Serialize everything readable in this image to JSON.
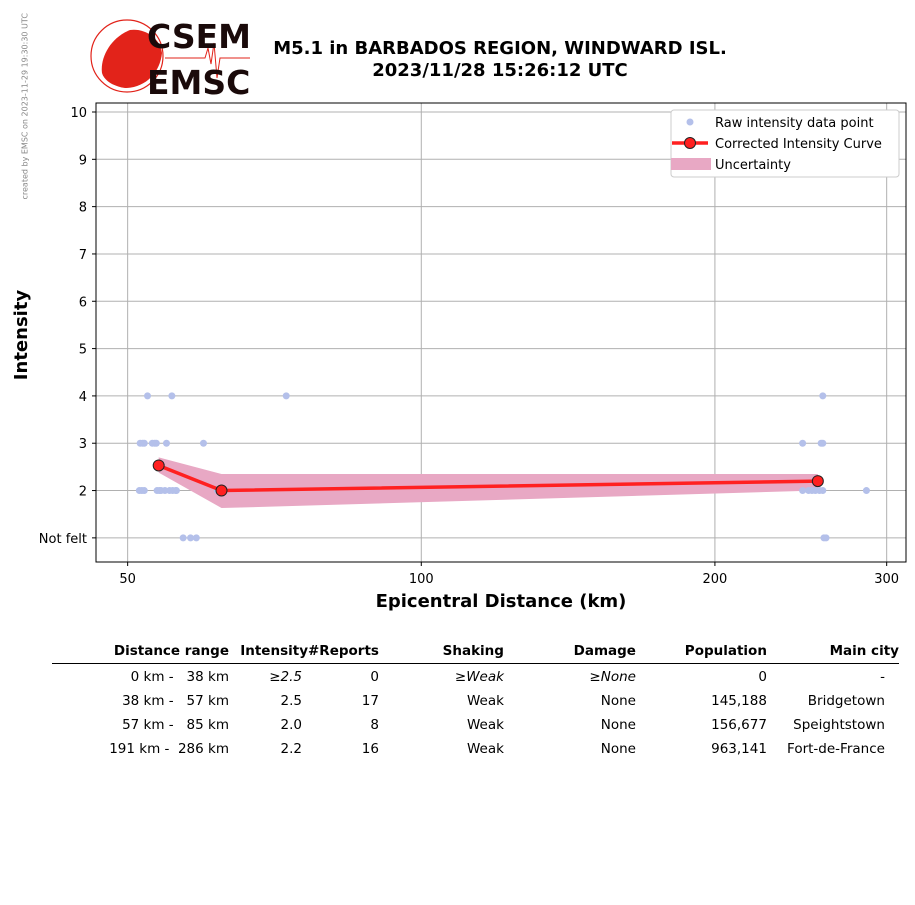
{
  "credit": "created by EMSC on 2023-11-29 19:30:30 UTC",
  "logo": {
    "top": "CSEM",
    "bottom": "EMSC"
  },
  "title": {
    "line1": "M5.1 in BARBADOS REGION, WINDWARD ISL.",
    "line2": "2023/11/28 15:26:12 UTC"
  },
  "chart_data": {
    "type": "scatter",
    "xlabel": "Epicentral Distance (km)",
    "ylabel": "Intensity",
    "xscale": "log",
    "xlim": [
      46.4,
      314
    ],
    "ylim": [
      0.49,
      10.19
    ],
    "xticks": [
      50,
      100,
      200,
      300
    ],
    "yticks": [
      {
        "v": 1,
        "label": "Not felt"
      },
      {
        "v": 2,
        "label": "2"
      },
      {
        "v": 3,
        "label": "3"
      },
      {
        "v": 4,
        "label": "4"
      },
      {
        "v": 5,
        "label": "5"
      },
      {
        "v": 6,
        "label": "6"
      },
      {
        "v": 7,
        "label": "7"
      },
      {
        "v": 8,
        "label": "8"
      },
      {
        "v": 9,
        "label": "9"
      },
      {
        "v": 10,
        "label": "10"
      }
    ],
    "grid": true,
    "legend_position": "top-right",
    "legend": [
      "Raw intensity data point",
      "Corrected Intensity Curve",
      "Uncertainty"
    ],
    "colors": {
      "raw": "#b4c0ea",
      "curve": "#ff2020",
      "uncertainty": "#e8a8c4"
    },
    "raw_points": [
      [
        52.4,
        4
      ],
      [
        55.5,
        4
      ],
      [
        72.7,
        4
      ],
      [
        258,
        4
      ],
      [
        51.5,
        3
      ],
      [
        51.8,
        3
      ],
      [
        52.0,
        3
      ],
      [
        53.0,
        3
      ],
      [
        53.3,
        3
      ],
      [
        53.5,
        3
      ],
      [
        54.8,
        3
      ],
      [
        59.8,
        3
      ],
      [
        246,
        3
      ],
      [
        257,
        3
      ],
      [
        258,
        3
      ],
      [
        51.4,
        2
      ],
      [
        51.7,
        2
      ],
      [
        52.0,
        2
      ],
      [
        53.6,
        2
      ],
      [
        53.9,
        2
      ],
      [
        54.1,
        2
      ],
      [
        54.6,
        2
      ],
      [
        55.2,
        2
      ],
      [
        55.6,
        2
      ],
      [
        56.0,
        2
      ],
      [
        56.1,
        2
      ],
      [
        61.8,
        2
      ],
      [
        246,
        2
      ],
      [
        249.5,
        2
      ],
      [
        251.5,
        2
      ],
      [
        253.5,
        2
      ],
      [
        256,
        2
      ],
      [
        258,
        2
      ],
      [
        286,
        2
      ],
      [
        57.0,
        1
      ],
      [
        58.0,
        1
      ],
      [
        58.8,
        1
      ],
      [
        258.7,
        1
      ],
      [
        260,
        1
      ]
    ],
    "curve": [
      [
        53.8,
        2.53
      ],
      [
        62.4,
        2.0
      ],
      [
        255,
        2.2
      ]
    ],
    "uncertainty": [
      {
        "x": 53.8,
        "lo": 2.38,
        "hi": 2.7
      },
      {
        "x": 62.4,
        "lo": 1.63,
        "hi": 2.35
      },
      {
        "x": 255,
        "lo": 2.0,
        "hi": 2.35
      }
    ]
  },
  "table": {
    "headers": [
      "Distance range",
      "Intensity",
      "#Reports",
      "Shaking",
      "Damage",
      "Population",
      "Main city"
    ],
    "rows": [
      [
        "0 km -   38 km",
        "≥2.5",
        "0",
        "≥Weak",
        "≥None",
        "0",
        "-"
      ],
      [
        "38 km -   57 km",
        "2.5",
        "17",
        "Weak",
        "None",
        "145,188",
        "Bridgetown"
      ],
      [
        "57 km -   85 km",
        "2.0",
        "8",
        "Weak",
        "None",
        "156,677",
        "Speightstown"
      ],
      [
        "191 km -  286 km",
        "2.2",
        "16",
        "Weak",
        "None",
        "963,141",
        "Fort-de-France"
      ]
    ]
  }
}
